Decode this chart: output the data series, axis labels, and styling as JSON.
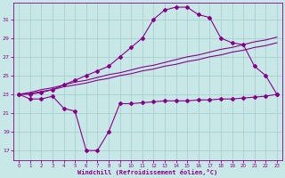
{
  "bg_color": "#c8e8e8",
  "grid_color": "#a8d0d0",
  "line_color": "#880088",
  "xlabel": "Windchill (Refroidissement éolien,°C)",
  "xlim_min": -0.5,
  "xlim_max": 23.5,
  "ylim_min": 16.0,
  "ylim_max": 32.8,
  "yticks": [
    17,
    19,
    21,
    23,
    25,
    27,
    29,
    31
  ],
  "xticks": [
    0,
    1,
    2,
    3,
    4,
    5,
    6,
    7,
    8,
    9,
    10,
    11,
    12,
    13,
    14,
    15,
    16,
    17,
    18,
    19,
    20,
    21,
    22,
    23
  ],
  "hours": [
    0,
    1,
    2,
    3,
    4,
    5,
    6,
    7,
    8,
    9,
    10,
    11,
    12,
    13,
    14,
    15,
    16,
    17,
    18,
    19,
    20,
    21,
    22,
    23
  ],
  "curve_upper": [
    23.0,
    23.0,
    23.2,
    23.5,
    24.0,
    24.5,
    25.0,
    25.5,
    26.0,
    27.0,
    28.0,
    29.0,
    31.0,
    32.0,
    32.3,
    32.3,
    31.5,
    31.2,
    29.0,
    28.5,
    28.3,
    26.0,
    25.0,
    23.0
  ],
  "curve_lower": [
    23.0,
    22.5,
    22.5,
    22.8,
    21.5,
    21.2,
    17.0,
    17.0,
    19.0,
    22.0,
    22.0,
    22.1,
    22.2,
    22.3,
    22.3,
    22.3,
    22.4,
    22.4,
    22.5,
    22.5,
    22.6,
    22.7,
    22.8,
    23.0
  ],
  "line_a": [
    23.0,
    23.1,
    23.3,
    23.5,
    23.8,
    24.0,
    24.2,
    24.5,
    24.7,
    25.0,
    25.2,
    25.5,
    25.7,
    26.0,
    26.2,
    26.5,
    26.7,
    27.0,
    27.2,
    27.5,
    27.7,
    28.0,
    28.2,
    28.5
  ],
  "line_b": [
    23.0,
    23.2,
    23.5,
    23.7,
    24.0,
    24.3,
    24.5,
    24.8,
    25.1,
    25.3,
    25.6,
    25.9,
    26.1,
    26.4,
    26.7,
    27.0,
    27.2,
    27.5,
    27.8,
    28.0,
    28.3,
    28.6,
    28.8,
    29.1
  ]
}
